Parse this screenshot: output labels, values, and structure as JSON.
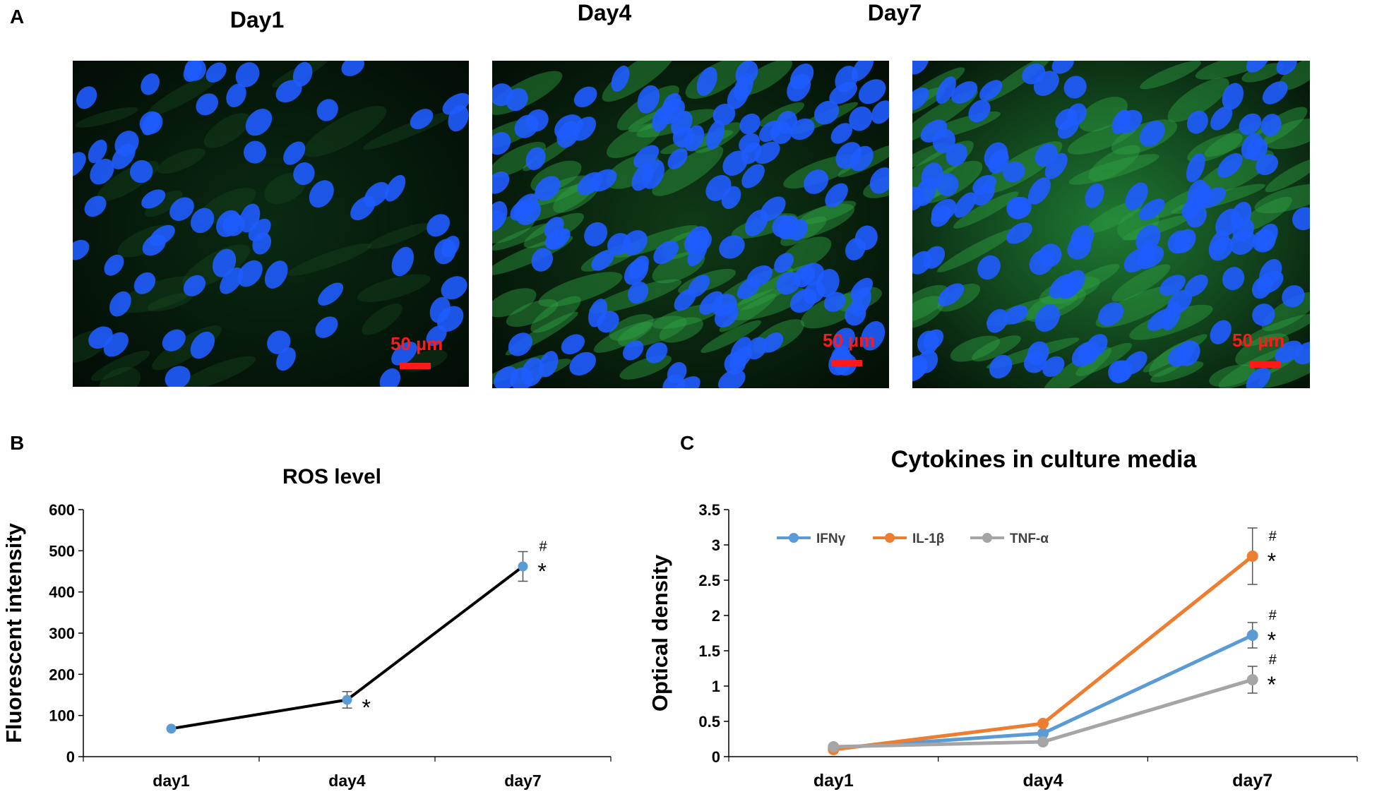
{
  "panel_a": {
    "letter": "A",
    "panels": [
      {
        "title": "Day1",
        "scale_label": "50 µm",
        "green_tone": "#0a2a12",
        "density": "low"
      },
      {
        "title": "Day4",
        "scale_label": "50 µm",
        "green_tone": "#0f3a17",
        "density": "medium"
      },
      {
        "title": "Day7",
        "scale_label": "50 µm",
        "green_tone": "#1f7a33",
        "density": "high"
      }
    ]
  },
  "panel_b": {
    "letter": "B"
  },
  "panel_c": {
    "letter": "C"
  },
  "colors": {
    "ifn": "#5b9bd5",
    "il1b": "#ed7d31",
    "tnf": "#a5a5a5",
    "ros": "#000000",
    "ros_point": "#5b9bd5",
    "scale": "#ff1a1a",
    "nucleus": "#1f5cff"
  },
  "chart_data": [
    {
      "type": "line",
      "title": "ROS level",
      "xlabel": "",
      "ylabel": "Fluorescent intensity",
      "categories": [
        "day1",
        "day4",
        "day7"
      ],
      "ylim": [
        0,
        600
      ],
      "yticks": [
        "0",
        "100",
        "200",
        "300",
        "400",
        "500",
        "600"
      ],
      "series": [
        {
          "name": "ROS",
          "values": [
            68,
            138,
            462
          ],
          "errors": [
            0,
            20,
            36
          ]
        }
      ],
      "annotations": [
        {
          "category": "day4",
          "marks": [
            "*"
          ]
        },
        {
          "category": "day7",
          "marks": [
            "#",
            "*"
          ]
        }
      ]
    },
    {
      "type": "line",
      "title": "Cytokines in culture media",
      "xlabel": "",
      "ylabel": "Optical density",
      "categories": [
        "day1",
        "day4",
        "day7"
      ],
      "ylim": [
        0,
        3.5
      ],
      "yticks": [
        "0",
        "0.5",
        "1",
        "1.5",
        "2",
        "2.5",
        "3",
        "3.5"
      ],
      "legend_position": "top-left",
      "series": [
        {
          "name": "IFNγ",
          "values": [
            0.12,
            0.33,
            1.72
          ],
          "errors": [
            0,
            0,
            0.18
          ]
        },
        {
          "name": "IL-1β",
          "values": [
            0.1,
            0.47,
            2.84
          ],
          "errors": [
            0,
            0,
            0.4
          ]
        },
        {
          "name": "TNF-α",
          "values": [
            0.14,
            0.21,
            1.09
          ],
          "errors": [
            0,
            0,
            0.19
          ]
        }
      ],
      "annotations": [
        {
          "category": "day7",
          "series": "IL-1β",
          "marks": [
            "#",
            "*"
          ]
        },
        {
          "category": "day7",
          "series": "IFNγ",
          "marks": [
            "#",
            "*"
          ]
        },
        {
          "category": "day7",
          "series": "TNF-α",
          "marks": [
            "#",
            "*"
          ]
        }
      ]
    }
  ]
}
